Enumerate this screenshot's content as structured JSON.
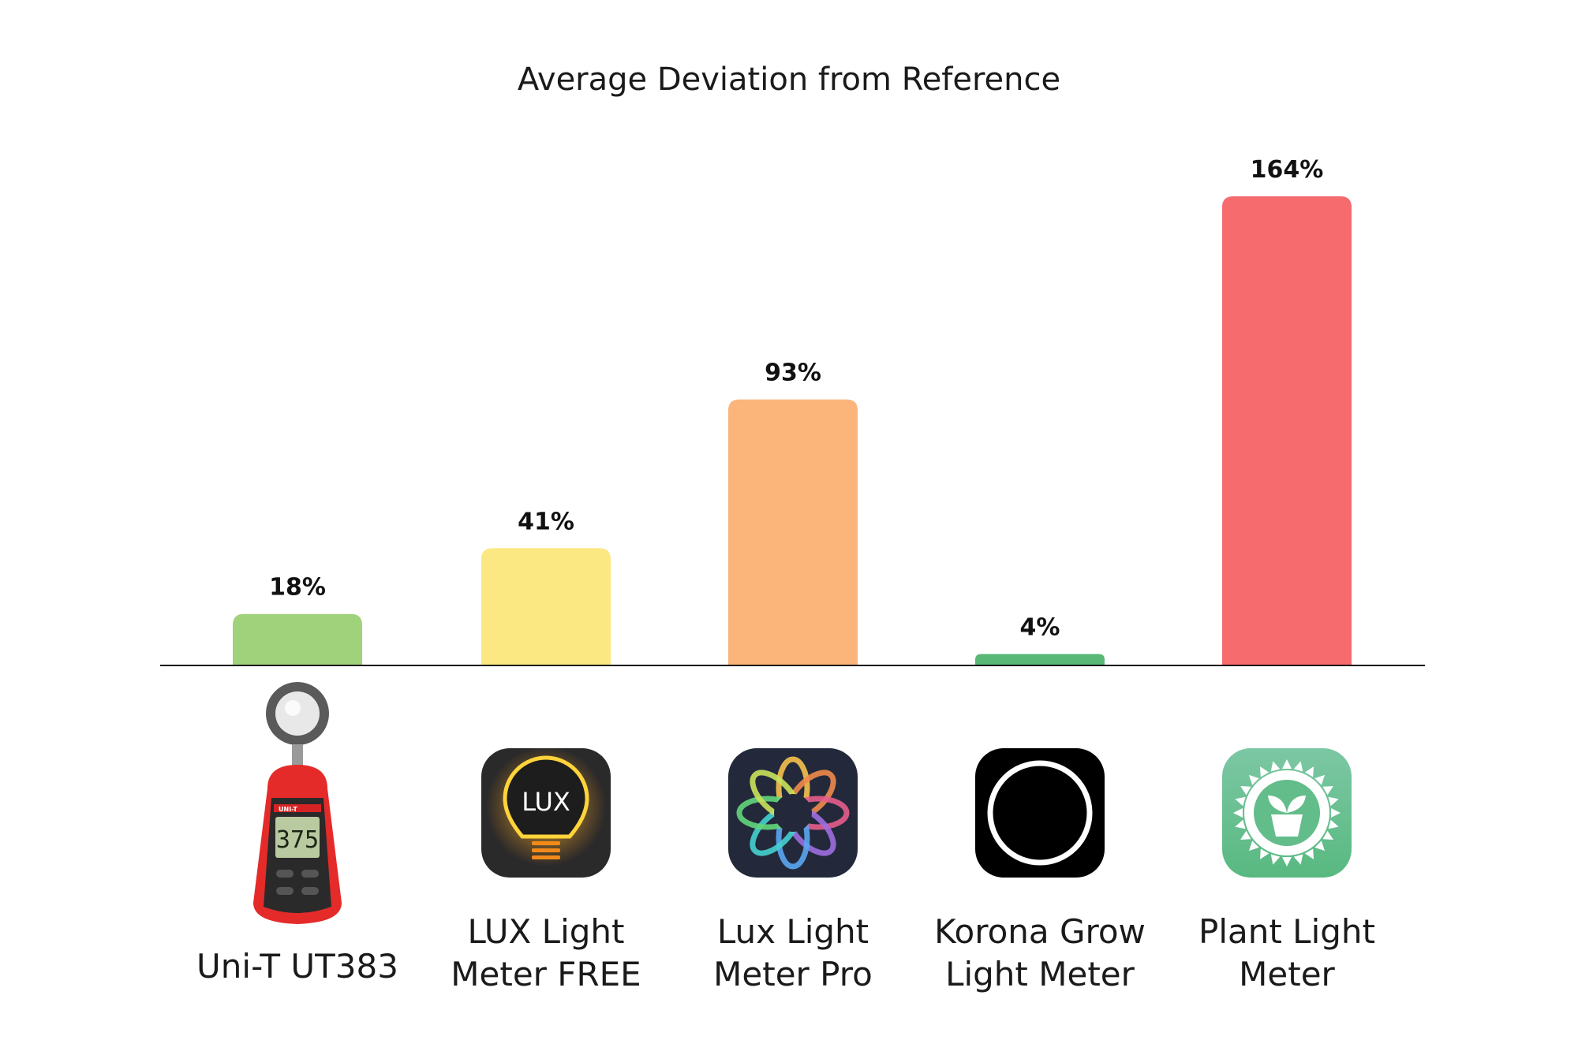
{
  "chart_data": {
    "type": "bar",
    "title": "Average Deviation from Reference",
    "xlabel": "",
    "ylabel": "",
    "ylim": [
      0,
      164
    ],
    "grid": false,
    "legend": "none",
    "value_suffix": "%",
    "categories": [
      "Uni-T UT383",
      "LUX Light Meter FREE",
      "Lux Light Meter Pro",
      "Korona Grow Light Meter",
      "Plant Light Meter"
    ],
    "values": [
      18,
      41,
      93,
      4,
      164
    ],
    "value_labels": [
      "18%",
      "41%",
      "93%",
      "4%",
      "164%"
    ],
    "category_lines": [
      [
        "Uni-T UT383"
      ],
      [
        "LUX Light",
        "Meter FREE"
      ],
      [
        "Lux Light",
        "Meter Pro"
      ],
      [
        "Korona Grow",
        "Light Meter"
      ],
      [
        "Plant Light",
        "Meter"
      ]
    ],
    "colors": [
      "#a0d27c",
      "#fce883",
      "#fbb57a",
      "#5ab876",
      "#f66b6e"
    ],
    "icons": [
      "uni-t-light-meter-device-icon",
      "lux-bulb-app-icon",
      "lux-pro-flower-app-icon",
      "korona-ring-app-icon",
      "plant-sun-app-icon"
    ],
    "icon_text": [
      "UNI-T",
      "LUX",
      "",
      "",
      ""
    ],
    "device_display": "375"
  }
}
